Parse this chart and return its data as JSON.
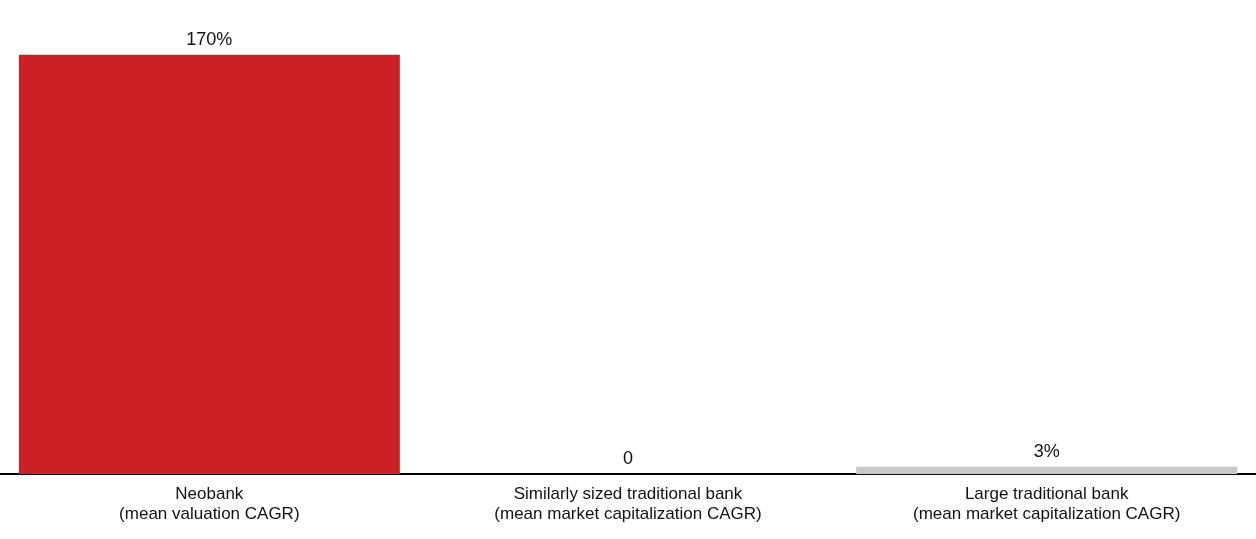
{
  "chart_data": {
    "type": "bar",
    "categories": [
      "Neobank\n(mean valuation CAGR)",
      "Similarly sized traditional bank\n(mean market capitalization CAGR)",
      "Large traditional bank\n(mean market capitalization CAGR)"
    ],
    "values": [
      170,
      0,
      3
    ],
    "colors": [
      "#cc2027",
      "#c8c8c8",
      "#c8c8c8"
    ],
    "value_labels": [
      "170%",
      "0",
      "3%"
    ],
    "grid": false,
    "legend": false,
    "tick_labels": "x"
  }
}
